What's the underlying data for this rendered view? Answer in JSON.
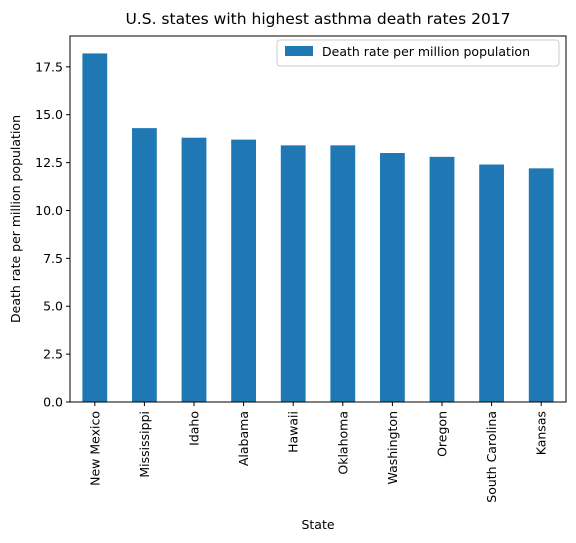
{
  "chart_data": {
    "type": "bar",
    "title": "U.S. states with highest asthma death rates 2017",
    "xlabel": "State",
    "ylabel": "Death rate per million population",
    "categories": [
      "New Mexico",
      "Mississippi",
      "Idaho",
      "Alabama",
      "Hawaii",
      "Oklahoma",
      "Washington",
      "Oregon",
      "South Carolina",
      "Kansas"
    ],
    "series": [
      {
        "name": "Death rate per million population",
        "values": [
          18.2,
          14.3,
          13.8,
          13.7,
          13.4,
          13.4,
          13.0,
          12.8,
          12.4,
          12.2
        ],
        "color": "#1f77b4"
      }
    ],
    "yticks": [
      "0.0",
      "2.5",
      "5.0",
      "7.5",
      "10.0",
      "12.5",
      "15.0",
      "17.5"
    ],
    "ylim": [
      0,
      19.11
    ],
    "grid": false,
    "legend_position": "top-right"
  }
}
